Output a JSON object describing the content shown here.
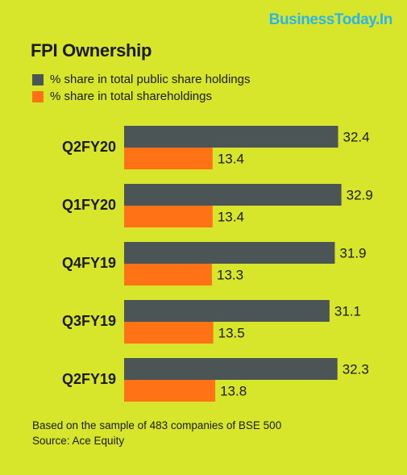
{
  "brand": "BusinessToday.In",
  "colors": {
    "background": "#d7e62a",
    "series_public": "#4b5556",
    "series_total": "#ff7316",
    "brand": "#2cb5e8"
  },
  "chart_data": {
    "type": "bar",
    "orientation": "horizontal",
    "title": "FPI Ownership",
    "categories": [
      "Q2FY20",
      "Q1FY20",
      "Q4FY19",
      "Q3FY19",
      "Q2FY19"
    ],
    "series": [
      {
        "name": "% share in total public share holdings",
        "values": [
          32.4,
          32.9,
          31.9,
          31.1,
          32.3
        ]
      },
      {
        "name": "% share  in  total shareholdings",
        "values": [
          13.4,
          13.4,
          13.3,
          13.5,
          13.8
        ]
      }
    ],
    "legend_position": "top-left",
    "grid": false
  },
  "footnote": {
    "line1": "Based on the sample of 483 companies of BSE 500",
    "line2": "Source: Ace Equity"
  }
}
